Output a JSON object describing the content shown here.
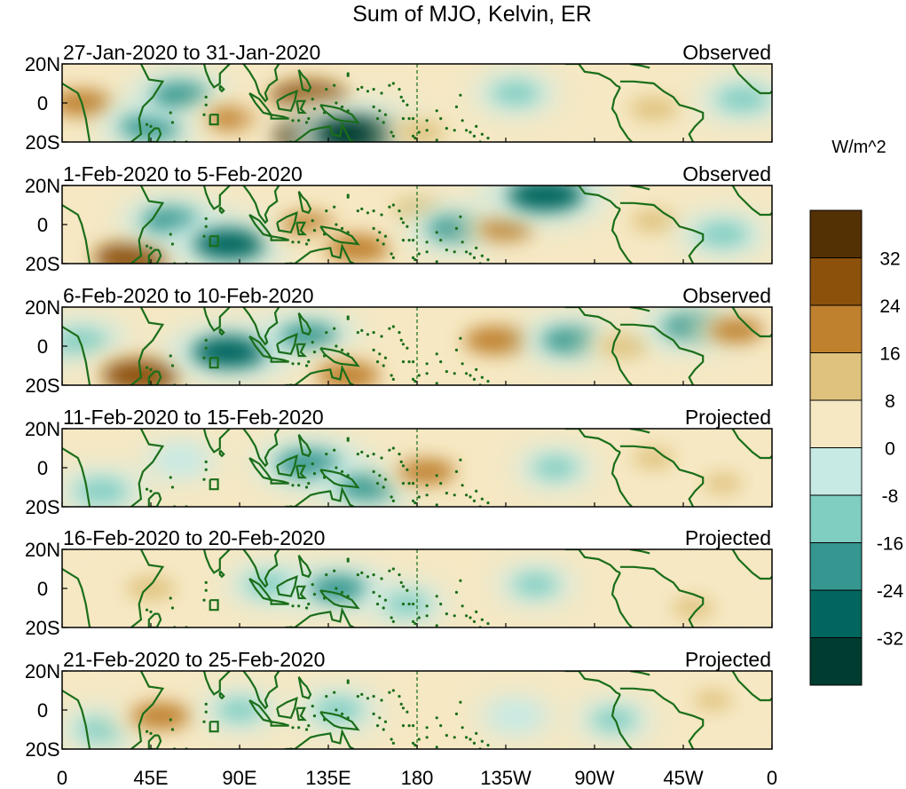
{
  "chart_data": {
    "type": "heatmap",
    "title": "Sum of MJO, Kelvin, ER",
    "units": "W/m^2",
    "x_ticks": [
      "0",
      "45E",
      "90E",
      "135E",
      "180",
      "135W",
      "90W",
      "45W",
      "0"
    ],
    "y_ticks": [
      "20N",
      "0",
      "20S"
    ],
    "colorbar": {
      "levels": [
        -40,
        -32,
        -24,
        -16,
        -8,
        0,
        8,
        16,
        24,
        32,
        40
      ],
      "tick_labels": [
        "-32",
        "-24",
        "-16",
        "-8",
        "0",
        "8",
        "16",
        "24",
        "32"
      ],
      "colors": [
        "#003c30",
        "#01665e",
        "#35978f",
        "#80cdc1",
        "#c7eae5",
        "#f6e8c3",
        "#dfc27d",
        "#bf812d",
        "#8c510a",
        "#543005"
      ]
    },
    "panels": [
      {
        "period": "27-Jan-2020 to 31-Jan-2020",
        "status": "Observed",
        "anomalies": [
          {
            "lon": 10,
            "lat": 0,
            "val": 20
          },
          {
            "lon": 45,
            "lat": -12,
            "val": -20
          },
          {
            "lon": 60,
            "lat": 4,
            "val": -18
          },
          {
            "lon": 88,
            "lat": -8,
            "val": 18
          },
          {
            "lon": 125,
            "lat": 3,
            "val": 30
          },
          {
            "lon": 130,
            "lat": -17,
            "val": 36
          },
          {
            "lon": 150,
            "lat": -16,
            "val": -34
          },
          {
            "lon": 182,
            "lat": -15,
            "val": 14
          },
          {
            "lon": 230,
            "lat": 5,
            "val": -12
          },
          {
            "lon": 300,
            "lat": -3,
            "val": 14
          },
          {
            "lon": 345,
            "lat": 2,
            "val": -14
          }
        ]
      },
      {
        "period": "1-Feb-2020 to 5-Feb-2020",
        "status": "Observed",
        "anomalies": [
          {
            "lon": 35,
            "lat": -17,
            "val": 28
          },
          {
            "lon": 55,
            "lat": 2,
            "val": -18
          },
          {
            "lon": 85,
            "lat": -10,
            "val": -26
          },
          {
            "lon": 125,
            "lat": 0,
            "val": 16
          },
          {
            "lon": 150,
            "lat": -12,
            "val": 22
          },
          {
            "lon": 180,
            "lat": 8,
            "val": 14
          },
          {
            "lon": 200,
            "lat": -2,
            "val": -18
          },
          {
            "lon": 225,
            "lat": -2,
            "val": 16
          },
          {
            "lon": 245,
            "lat": 15,
            "val": -28
          },
          {
            "lon": 300,
            "lat": 2,
            "val": 12
          },
          {
            "lon": 335,
            "lat": -5,
            "val": -14
          }
        ]
      },
      {
        "period": "6-Feb-2020 to 10-Feb-2020",
        "status": "Observed",
        "anomalies": [
          {
            "lon": 10,
            "lat": 2,
            "val": -16
          },
          {
            "lon": 40,
            "lat": -15,
            "val": 30
          },
          {
            "lon": 85,
            "lat": -3,
            "val": -28
          },
          {
            "lon": 125,
            "lat": 5,
            "val": -18
          },
          {
            "lon": 145,
            "lat": -15,
            "val": 22
          },
          {
            "lon": 220,
            "lat": 3,
            "val": 22
          },
          {
            "lon": 258,
            "lat": 3,
            "val": -18
          },
          {
            "lon": 285,
            "lat": 0,
            "val": 14
          },
          {
            "lon": 320,
            "lat": 10,
            "val": -20
          },
          {
            "lon": 342,
            "lat": 8,
            "val": 16
          }
        ]
      },
      {
        "period": "11-Feb-2020 to 15-Feb-2020",
        "status": "Projected",
        "anomalies": [
          {
            "lon": 20,
            "lat": -12,
            "val": -14
          },
          {
            "lon": 60,
            "lat": 4,
            "val": -8
          },
          {
            "lon": 125,
            "lat": 2,
            "val": -22
          },
          {
            "lon": 155,
            "lat": -10,
            "val": -18
          },
          {
            "lon": 185,
            "lat": -2,
            "val": 18
          },
          {
            "lon": 250,
            "lat": 0,
            "val": -10
          },
          {
            "lon": 300,
            "lat": 5,
            "val": 10
          },
          {
            "lon": 335,
            "lat": -8,
            "val": 8
          }
        ]
      },
      {
        "period": "16-Feb-2020 to 20-Feb-2020",
        "status": "Projected",
        "anomalies": [
          {
            "lon": 45,
            "lat": 0,
            "val": 14
          },
          {
            "lon": 105,
            "lat": 2,
            "val": -12
          },
          {
            "lon": 140,
            "lat": 0,
            "val": -18
          },
          {
            "lon": 175,
            "lat": -8,
            "val": -10
          },
          {
            "lon": 240,
            "lat": 2,
            "val": -10
          },
          {
            "lon": 320,
            "lat": -10,
            "val": 10
          }
        ]
      },
      {
        "period": "21-Feb-2020 to 25-Feb-2020",
        "status": "Projected",
        "anomalies": [
          {
            "lon": 20,
            "lat": -10,
            "val": -12
          },
          {
            "lon": 50,
            "lat": -3,
            "val": 20
          },
          {
            "lon": 90,
            "lat": 0,
            "val": -10
          },
          {
            "lon": 140,
            "lat": 0,
            "val": -12
          },
          {
            "lon": 230,
            "lat": -3,
            "val": -8
          },
          {
            "lon": 280,
            "lat": -5,
            "val": -10
          },
          {
            "lon": 330,
            "lat": 5,
            "val": 8
          }
        ]
      }
    ]
  }
}
